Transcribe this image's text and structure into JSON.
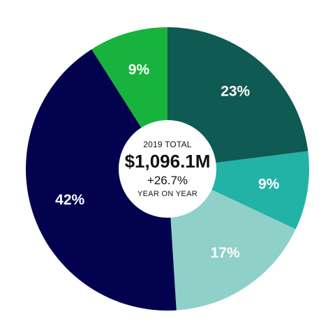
{
  "chart_data": {
    "type": "pie",
    "values": [
      23,
      9,
      17,
      42,
      9
    ],
    "labels": [
      "23%",
      "9%",
      "17%",
      "42%",
      "9%"
    ],
    "colors": [
      "#0f5a52",
      "#23b2a6",
      "#8fd0c8",
      "#02024f",
      "#17b33c"
    ]
  },
  "center": {
    "label": "2019 TOTAL",
    "value": "$1,096.1M",
    "change": "+26.7%",
    "change_label": "YEAR ON YEAR"
  }
}
